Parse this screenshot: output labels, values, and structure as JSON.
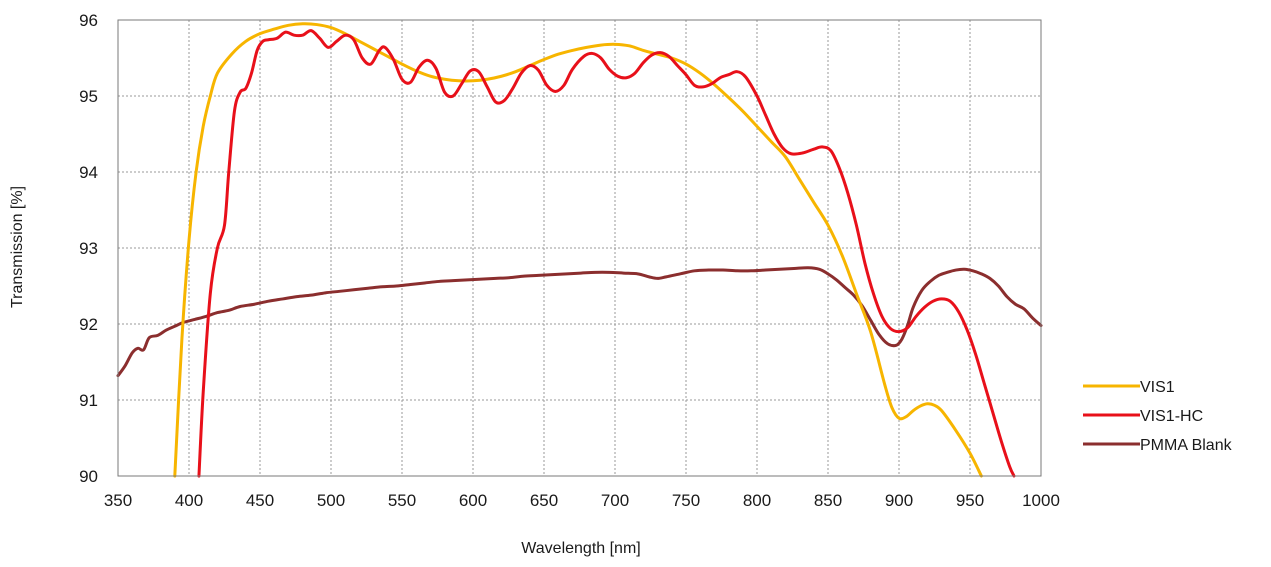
{
  "chart_data": {
    "type": "line",
    "title": "",
    "xlabel": "Wavelength [nm]",
    "ylabel": "Transmission [%]",
    "xlim": [
      350,
      1000
    ],
    "ylim": [
      90,
      96
    ],
    "xticks": [
      350,
      400,
      450,
      500,
      550,
      600,
      650,
      700,
      750,
      800,
      850,
      900,
      950,
      1000
    ],
    "yticks": [
      90,
      91,
      92,
      93,
      94,
      95,
      96
    ],
    "grid": true,
    "legend_position": "right",
    "series": [
      {
        "name": "VIS1",
        "color": "#F7B500",
        "points": [
          [
            390,
            90.0
          ],
          [
            395,
            91.8
          ],
          [
            400,
            93.1
          ],
          [
            405,
            94.0
          ],
          [
            410,
            94.6
          ],
          [
            415,
            95.0
          ],
          [
            420,
            95.3
          ],
          [
            430,
            95.55
          ],
          [
            440,
            95.72
          ],
          [
            450,
            95.82
          ],
          [
            460,
            95.88
          ],
          [
            470,
            95.93
          ],
          [
            480,
            95.95
          ],
          [
            490,
            95.94
          ],
          [
            500,
            95.9
          ],
          [
            510,
            95.82
          ],
          [
            520,
            95.72
          ],
          [
            530,
            95.62
          ],
          [
            540,
            95.52
          ],
          [
            550,
            95.42
          ],
          [
            560,
            95.33
          ],
          [
            570,
            95.26
          ],
          [
            580,
            95.22
          ],
          [
            590,
            95.2
          ],
          [
            600,
            95.2
          ],
          [
            610,
            95.22
          ],
          [
            620,
            95.26
          ],
          [
            630,
            95.32
          ],
          [
            640,
            95.4
          ],
          [
            650,
            95.48
          ],
          [
            660,
            95.55
          ],
          [
            670,
            95.6
          ],
          [
            680,
            95.64
          ],
          [
            690,
            95.67
          ],
          [
            700,
            95.68
          ],
          [
            710,
            95.66
          ],
          [
            720,
            95.6
          ],
          [
            730,
            95.55
          ],
          [
            740,
            95.5
          ],
          [
            750,
            95.42
          ],
          [
            760,
            95.3
          ],
          [
            770,
            95.15
          ],
          [
            780,
            94.98
          ],
          [
            790,
            94.8
          ],
          [
            800,
            94.6
          ],
          [
            810,
            94.4
          ],
          [
            820,
            94.2
          ],
          [
            830,
            93.9
          ],
          [
            840,
            93.6
          ],
          [
            850,
            93.3
          ],
          [
            860,
            92.9
          ],
          [
            870,
            92.4
          ],
          [
            880,
            91.9
          ],
          [
            890,
            91.2
          ],
          [
            895,
            90.9
          ],
          [
            900,
            90.76
          ],
          [
            905,
            90.78
          ],
          [
            910,
            90.86
          ],
          [
            915,
            90.92
          ],
          [
            920,
            90.95
          ],
          [
            925,
            90.93
          ],
          [
            930,
            90.86
          ],
          [
            940,
            90.6
          ],
          [
            950,
            90.3
          ],
          [
            958,
            90.0
          ]
        ]
      },
      {
        "name": "VIS1-HC",
        "color": "#E8101A",
        "points": [
          [
            407,
            90.0
          ],
          [
            410,
            91.1
          ],
          [
            415,
            92.4
          ],
          [
            420,
            93.0
          ],
          [
            425,
            93.3
          ],
          [
            428,
            94.0
          ],
          [
            432,
            94.8
          ],
          [
            436,
            95.05
          ],
          [
            440,
            95.1
          ],
          [
            444,
            95.3
          ],
          [
            448,
            95.6
          ],
          [
            452,
            95.72
          ],
          [
            456,
            95.74
          ],
          [
            462,
            95.76
          ],
          [
            468,
            95.84
          ],
          [
            474,
            95.8
          ],
          [
            480,
            95.8
          ],
          [
            486,
            95.86
          ],
          [
            492,
            95.76
          ],
          [
            498,
            95.64
          ],
          [
            504,
            95.72
          ],
          [
            510,
            95.8
          ],
          [
            516,
            95.74
          ],
          [
            522,
            95.5
          ],
          [
            528,
            95.42
          ],
          [
            534,
            95.6
          ],
          [
            538,
            95.64
          ],
          [
            544,
            95.48
          ],
          [
            550,
            95.22
          ],
          [
            556,
            95.18
          ],
          [
            562,
            95.38
          ],
          [
            568,
            95.47
          ],
          [
            574,
            95.36
          ],
          [
            580,
            95.05
          ],
          [
            586,
            95.0
          ],
          [
            592,
            95.16
          ],
          [
            598,
            95.33
          ],
          [
            604,
            95.32
          ],
          [
            610,
            95.12
          ],
          [
            616,
            94.92
          ],
          [
            622,
            94.94
          ],
          [
            628,
            95.1
          ],
          [
            634,
            95.3
          ],
          [
            640,
            95.4
          ],
          [
            646,
            95.34
          ],
          [
            652,
            95.14
          ],
          [
            658,
            95.06
          ],
          [
            664,
            95.14
          ],
          [
            670,
            95.35
          ],
          [
            678,
            95.52
          ],
          [
            684,
            95.56
          ],
          [
            690,
            95.5
          ],
          [
            696,
            95.35
          ],
          [
            702,
            95.26
          ],
          [
            708,
            95.24
          ],
          [
            714,
            95.3
          ],
          [
            720,
            95.44
          ],
          [
            726,
            95.54
          ],
          [
            732,
            95.57
          ],
          [
            738,
            95.52
          ],
          [
            744,
            95.4
          ],
          [
            750,
            95.28
          ],
          [
            756,
            95.14
          ],
          [
            762,
            95.12
          ],
          [
            768,
            95.16
          ],
          [
            774,
            95.24
          ],
          [
            780,
            95.28
          ],
          [
            786,
            95.32
          ],
          [
            792,
            95.25
          ],
          [
            800,
            95.0
          ],
          [
            806,
            94.75
          ],
          [
            812,
            94.5
          ],
          [
            818,
            94.32
          ],
          [
            824,
            94.24
          ],
          [
            832,
            94.25
          ],
          [
            840,
            94.3
          ],
          [
            846,
            94.33
          ],
          [
            852,
            94.28
          ],
          [
            858,
            94.05
          ],
          [
            864,
            93.72
          ],
          [
            870,
            93.3
          ],
          [
            876,
            92.8
          ],
          [
            882,
            92.4
          ],
          [
            888,
            92.1
          ],
          [
            894,
            91.94
          ],
          [
            900,
            91.9
          ],
          [
            906,
            91.95
          ],
          [
            912,
            92.1
          ],
          [
            918,
            92.22
          ],
          [
            924,
            92.3
          ],
          [
            930,
            92.33
          ],
          [
            936,
            92.3
          ],
          [
            942,
            92.16
          ],
          [
            948,
            91.92
          ],
          [
            954,
            91.6
          ],
          [
            960,
            91.22
          ],
          [
            966,
            90.84
          ],
          [
            972,
            90.46
          ],
          [
            978,
            90.12
          ],
          [
            981,
            90.0
          ]
        ]
      },
      {
        "name": "PMMA Blank",
        "color": "#8B2E2E",
        "points": [
          [
            350,
            91.32
          ],
          [
            355,
            91.45
          ],
          [
            360,
            91.62
          ],
          [
            364,
            91.68
          ],
          [
            368,
            91.66
          ],
          [
            372,
            91.82
          ],
          [
            378,
            91.85
          ],
          [
            384,
            91.92
          ],
          [
            390,
            91.97
          ],
          [
            396,
            92.02
          ],
          [
            404,
            92.06
          ],
          [
            412,
            92.1
          ],
          [
            420,
            92.15
          ],
          [
            428,
            92.18
          ],
          [
            436,
            92.23
          ],
          [
            446,
            92.26
          ],
          [
            456,
            92.3
          ],
          [
            466,
            92.33
          ],
          [
            476,
            92.36
          ],
          [
            486,
            92.38
          ],
          [
            496,
            92.41
          ],
          [
            506,
            92.43
          ],
          [
            516,
            92.45
          ],
          [
            526,
            92.47
          ],
          [
            536,
            92.49
          ],
          [
            546,
            92.5
          ],
          [
            556,
            92.52
          ],
          [
            566,
            92.54
          ],
          [
            576,
            92.56
          ],
          [
            586,
            92.57
          ],
          [
            596,
            92.58
          ],
          [
            606,
            92.59
          ],
          [
            616,
            92.6
          ],
          [
            626,
            92.61
          ],
          [
            636,
            92.63
          ],
          [
            646,
            92.64
          ],
          [
            656,
            92.65
          ],
          [
            666,
            92.66
          ],
          [
            676,
            92.67
          ],
          [
            686,
            92.68
          ],
          [
            696,
            92.68
          ],
          [
            706,
            92.67
          ],
          [
            716,
            92.66
          ],
          [
            724,
            92.62
          ],
          [
            730,
            92.6
          ],
          [
            736,
            92.62
          ],
          [
            746,
            92.66
          ],
          [
            756,
            92.7
          ],
          [
            766,
            92.71
          ],
          [
            776,
            92.71
          ],
          [
            786,
            92.7
          ],
          [
            796,
            92.7
          ],
          [
            806,
            92.71
          ],
          [
            816,
            92.72
          ],
          [
            826,
            92.73
          ],
          [
            836,
            92.74
          ],
          [
            844,
            92.72
          ],
          [
            850,
            92.66
          ],
          [
            856,
            92.58
          ],
          [
            862,
            92.48
          ],
          [
            868,
            92.38
          ],
          [
            874,
            92.24
          ],
          [
            880,
            92.05
          ],
          [
            886,
            91.86
          ],
          [
            892,
            91.74
          ],
          [
            898,
            91.72
          ],
          [
            902,
            91.8
          ],
          [
            906,
            91.98
          ],
          [
            910,
            92.22
          ],
          [
            916,
            92.44
          ],
          [
            922,
            92.56
          ],
          [
            928,
            92.64
          ],
          [
            934,
            92.68
          ],
          [
            940,
            92.71
          ],
          [
            946,
            92.72
          ],
          [
            952,
            92.7
          ],
          [
            958,
            92.66
          ],
          [
            964,
            92.6
          ],
          [
            970,
            92.5
          ],
          [
            976,
            92.36
          ],
          [
            982,
            92.26
          ],
          [
            988,
            92.2
          ],
          [
            994,
            92.08
          ],
          [
            1000,
            91.98
          ]
        ]
      }
    ]
  }
}
